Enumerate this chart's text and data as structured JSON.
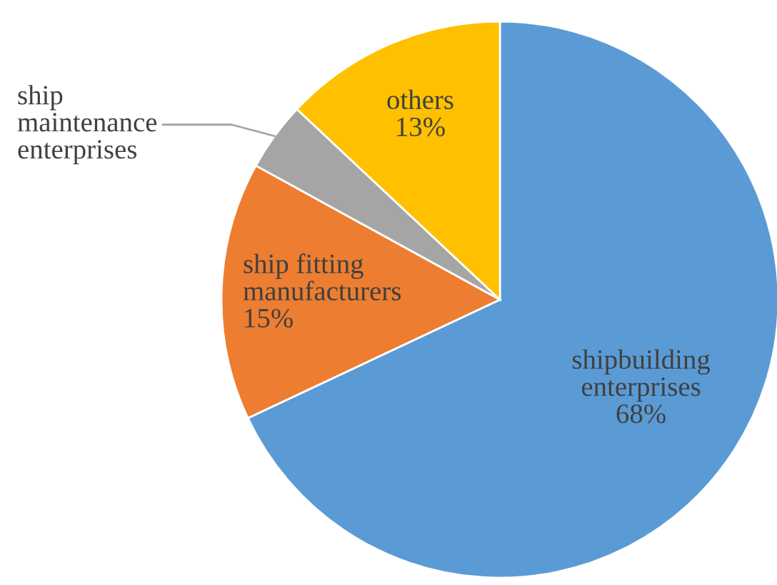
{
  "chart_data": {
    "type": "pie",
    "categories": [
      "shipbuilding\nenterprises",
      "ship fitting\nmanufacturers",
      "ship\nmaintenance\nenterprises",
      "others"
    ],
    "values": [
      68,
      15,
      4,
      13
    ],
    "value_labels": [
      "68%",
      "15%",
      null,
      "13%"
    ],
    "colors": [
      "#5b9bd5",
      "#ed7d31",
      "#a5a5a5",
      "#ffc000"
    ],
    "legend": false
  }
}
